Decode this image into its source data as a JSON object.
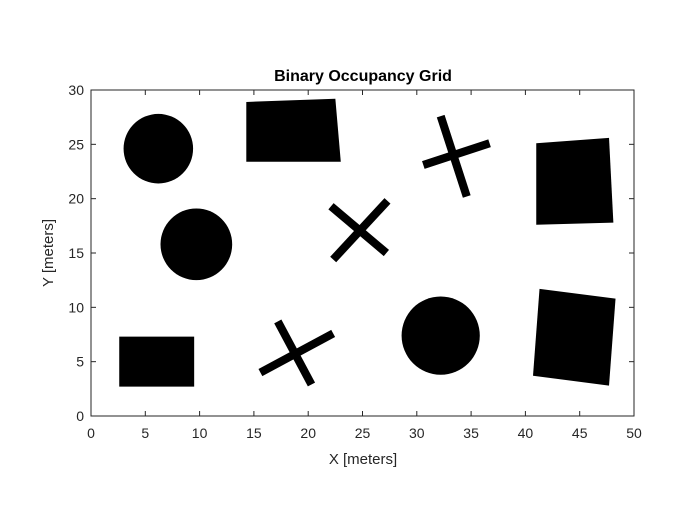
{
  "chart_data": {
    "type": "heatmap",
    "title": "Binary Occupancy Grid",
    "xlabel": "X [meters]",
    "ylabel": "Y [meters]",
    "xlim": [
      0,
      50
    ],
    "ylim": [
      0,
      30
    ],
    "xticks": [
      0,
      5,
      10,
      15,
      20,
      25,
      30,
      35,
      40,
      45,
      50
    ],
    "yticks": [
      0,
      5,
      10,
      15,
      20,
      25,
      30
    ],
    "grid": false,
    "colors": {
      "occupied": "#000000",
      "free": "#ffffff",
      "axis": "#262626"
    },
    "obstacles": [
      {
        "shape": "circle",
        "center": [
          6.2,
          24.6
        ],
        "radius": 3.2
      },
      {
        "shape": "circle",
        "center": [
          9.7,
          15.8
        ],
        "radius": 3.3
      },
      {
        "shape": "circle",
        "center": [
          32.2,
          7.4
        ],
        "radius": 3.6
      },
      {
        "shape": "polygon",
        "points": [
          [
            14.3,
            23.4
          ],
          [
            23,
            23.4
          ],
          [
            22.5,
            29.2
          ],
          [
            14.3,
            28.9
          ]
        ]
      },
      {
        "shape": "polygon",
        "points": [
          [
            41,
            17.6
          ],
          [
            48.1,
            17.8
          ],
          [
            47.7,
            25.6
          ],
          [
            41,
            25.1
          ]
        ]
      },
      {
        "shape": "polygon",
        "points": [
          [
            2.6,
            2.7
          ],
          [
            9.5,
            2.7
          ],
          [
            9.5,
            7.3
          ],
          [
            2.6,
            7.3
          ]
        ]
      },
      {
        "shape": "polygon",
        "points": [
          [
            41.3,
            11.7
          ],
          [
            48.3,
            10.8
          ],
          [
            47.7,
            2.8
          ],
          [
            40.7,
            3.7
          ]
        ]
      },
      {
        "shape": "cross",
        "center": [
          33.3,
          23.9
        ],
        "arms": [
          [
            [
              30.6,
              23.1
            ],
            [
              36.7,
              25.1
            ]
          ],
          [
            [
              32.2,
              27.6
            ],
            [
              34.6,
              20.2
            ]
          ]
        ],
        "width": 0.75
      },
      {
        "shape": "cross",
        "center": [
          24.6,
          17.1
        ],
        "arms": [
          [
            [
              22.3,
              14.4
            ],
            [
              27.3,
              19.8
            ]
          ],
          [
            [
              22.1,
              19.3
            ],
            [
              27.2,
              15.0
            ]
          ]
        ],
        "width": 0.75
      },
      {
        "shape": "cross",
        "center": [
          18.6,
          5.8
        ],
        "arms": [
          [
            [
              15.6,
              4.0
            ],
            [
              22.3,
              7.6
            ]
          ],
          [
            [
              17.2,
              8.7
            ],
            [
              20.3,
              2.9
            ]
          ]
        ],
        "width": 0.75
      }
    ]
  }
}
